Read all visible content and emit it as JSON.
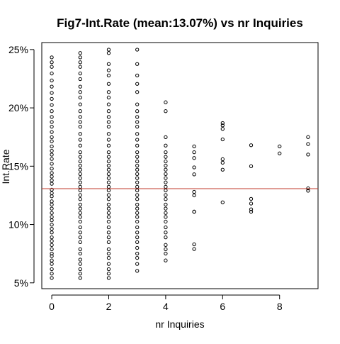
{
  "chart_data": {
    "type": "scatter",
    "title": "Fig7-Int.Rate (mean:13.07%) vs nr Inquiries",
    "xlabel": "nr Inquiries",
    "ylabel": "Int.Rate",
    "xlim": [
      -0.35,
      9.35
    ],
    "ylim": [
      4.5,
      25.6
    ],
    "x_ticks": [
      {
        "value": 0,
        "label": "0"
      },
      {
        "value": 2,
        "label": "2"
      },
      {
        "value": 4,
        "label": "4"
      },
      {
        "value": 6,
        "label": "6"
      },
      {
        "value": 8,
        "label": "8"
      }
    ],
    "y_ticks": [
      {
        "value": 5,
        "label": "5%"
      },
      {
        "value": 10,
        "label": "10%"
      },
      {
        "value": 15,
        "label": "15%"
      },
      {
        "value": 20,
        "label": "20%"
      },
      {
        "value": 25,
        "label": "25%"
      }
    ],
    "mean_line": {
      "value": 13.07,
      "color": "#c0392b"
    },
    "grid": false,
    "point_style": "open-circle",
    "point_color": "#000000",
    "series": [
      {
        "points": [
          {
            "x": 0,
            "y": 5.42
          },
          {
            "x": 0,
            "y": 5.79
          },
          {
            "x": 0,
            "y": 6.17
          },
          {
            "x": 0,
            "y": 6.62
          },
          {
            "x": 0,
            "y": 6.92
          },
          {
            "x": 0,
            "y": 7.29
          },
          {
            "x": 0,
            "y": 7.51
          },
          {
            "x": 0,
            "y": 7.88
          },
          {
            "x": 0,
            "y": 8.25
          },
          {
            "x": 0,
            "y": 8.59
          },
          {
            "x": 0,
            "y": 8.9
          },
          {
            "x": 0,
            "y": 9.32
          },
          {
            "x": 0,
            "y": 9.63
          },
          {
            "x": 0,
            "y": 9.99
          },
          {
            "x": 0,
            "y": 10.36
          },
          {
            "x": 0,
            "y": 10.65
          },
          {
            "x": 0,
            "y": 10.99
          },
          {
            "x": 0,
            "y": 11.36
          },
          {
            "x": 0,
            "y": 11.71
          },
          {
            "x": 0,
            "y": 11.99
          },
          {
            "x": 0,
            "y": 12.42
          },
          {
            "x": 0,
            "y": 12.69
          },
          {
            "x": 0,
            "y": 12.99
          },
          {
            "x": 0,
            "y": 13.49
          },
          {
            "x": 0,
            "y": 13.79
          },
          {
            "x": 0,
            "y": 14.11
          },
          {
            "x": 0,
            "y": 14.42
          },
          {
            "x": 0,
            "y": 14.79
          },
          {
            "x": 0,
            "y": 15.21
          },
          {
            "x": 0,
            "y": 15.62
          },
          {
            "x": 0,
            "y": 15.99
          },
          {
            "x": 0,
            "y": 16.32
          },
          {
            "x": 0,
            "y": 16.69
          },
          {
            "x": 0,
            "y": 17.14
          },
          {
            "x": 0,
            "y": 17.49
          },
          {
            "x": 0,
            "y": 17.93
          },
          {
            "x": 0,
            "y": 18.39
          },
          {
            "x": 0,
            "y": 18.79
          },
          {
            "x": 0,
            "y": 19.22
          },
          {
            "x": 0,
            "y": 19.72
          },
          {
            "x": 0,
            "y": 20.25
          },
          {
            "x": 0,
            "y": 20.77
          },
          {
            "x": 0,
            "y": 21.28
          },
          {
            "x": 0,
            "y": 21.82
          },
          {
            "x": 0,
            "y": 22.35
          },
          {
            "x": 0,
            "y": 22.95
          },
          {
            "x": 0,
            "y": 23.52
          },
          {
            "x": 0,
            "y": 23.91
          },
          {
            "x": 0,
            "y": 24.33
          },
          {
            "x": 1,
            "y": 5.42
          },
          {
            "x": 1,
            "y": 5.79
          },
          {
            "x": 1,
            "y": 6.17
          },
          {
            "x": 1,
            "y": 6.62
          },
          {
            "x": 1,
            "y": 6.99
          },
          {
            "x": 1,
            "y": 7.51
          },
          {
            "x": 1,
            "y": 7.88
          },
          {
            "x": 1,
            "y": 8.49
          },
          {
            "x": 1,
            "y": 8.9
          },
          {
            "x": 1,
            "y": 9.32
          },
          {
            "x": 1,
            "y": 9.76
          },
          {
            "x": 1,
            "y": 10.25
          },
          {
            "x": 1,
            "y": 10.65
          },
          {
            "x": 1,
            "y": 10.99
          },
          {
            "x": 1,
            "y": 11.36
          },
          {
            "x": 1,
            "y": 11.71
          },
          {
            "x": 1,
            "y": 12.18
          },
          {
            "x": 1,
            "y": 12.53
          },
          {
            "x": 1,
            "y": 12.92
          },
          {
            "x": 1,
            "y": 13.23
          },
          {
            "x": 1,
            "y": 13.61
          },
          {
            "x": 1,
            "y": 13.98
          },
          {
            "x": 1,
            "y": 14.33
          },
          {
            "x": 1,
            "y": 14.7
          },
          {
            "x": 1,
            "y": 15.05
          },
          {
            "x": 1,
            "y": 15.41
          },
          {
            "x": 1,
            "y": 15.8
          },
          {
            "x": 1,
            "y": 16.2
          },
          {
            "x": 1,
            "y": 16.77
          },
          {
            "x": 1,
            "y": 17.27
          },
          {
            "x": 1,
            "y": 17.77
          },
          {
            "x": 1,
            "y": 18.39
          },
          {
            "x": 1,
            "y": 18.79
          },
          {
            "x": 1,
            "y": 19.22
          },
          {
            "x": 1,
            "y": 19.72
          },
          {
            "x": 1,
            "y": 20.3
          },
          {
            "x": 1,
            "y": 20.89
          },
          {
            "x": 1,
            "y": 21.36
          },
          {
            "x": 1,
            "y": 21.82
          },
          {
            "x": 1,
            "y": 22.47
          },
          {
            "x": 1,
            "y": 22.95
          },
          {
            "x": 1,
            "y": 23.52
          },
          {
            "x": 1,
            "y": 23.91
          },
          {
            "x": 1,
            "y": 24.33
          },
          {
            "x": 1,
            "y": 24.7
          },
          {
            "x": 2,
            "y": 5.42
          },
          {
            "x": 2,
            "y": 5.79
          },
          {
            "x": 2,
            "y": 6.17
          },
          {
            "x": 2,
            "y": 6.62
          },
          {
            "x": 2,
            "y": 7.14
          },
          {
            "x": 2,
            "y": 7.51
          },
          {
            "x": 2,
            "y": 7.88
          },
          {
            "x": 2,
            "y": 8.49
          },
          {
            "x": 2,
            "y": 8.9
          },
          {
            "x": 2,
            "y": 9.32
          },
          {
            "x": 2,
            "y": 9.76
          },
          {
            "x": 2,
            "y": 10.25
          },
          {
            "x": 2,
            "y": 10.65
          },
          {
            "x": 2,
            "y": 10.99
          },
          {
            "x": 2,
            "y": 11.36
          },
          {
            "x": 2,
            "y": 11.71
          },
          {
            "x": 2,
            "y": 12.18
          },
          {
            "x": 2,
            "y": 12.53
          },
          {
            "x": 2,
            "y": 12.92
          },
          {
            "x": 2,
            "y": 13.23
          },
          {
            "x": 2,
            "y": 13.61
          },
          {
            "x": 2,
            "y": 13.98
          },
          {
            "x": 2,
            "y": 14.33
          },
          {
            "x": 2,
            "y": 14.7
          },
          {
            "x": 2,
            "y": 15.05
          },
          {
            "x": 2,
            "y": 15.41
          },
          {
            "x": 2,
            "y": 15.8
          },
          {
            "x": 2,
            "y": 16.2
          },
          {
            "x": 2,
            "y": 16.77
          },
          {
            "x": 2,
            "y": 17.27
          },
          {
            "x": 2,
            "y": 17.77
          },
          {
            "x": 2,
            "y": 18.39
          },
          {
            "x": 2,
            "y": 18.79
          },
          {
            "x": 2,
            "y": 19.22
          },
          {
            "x": 2,
            "y": 19.72
          },
          {
            "x": 2,
            "y": 20.3
          },
          {
            "x": 2,
            "y": 20.89
          },
          {
            "x": 2,
            "y": 21.36
          },
          {
            "x": 2,
            "y": 22.06
          },
          {
            "x": 2,
            "y": 22.78
          },
          {
            "x": 2,
            "y": 23.22
          },
          {
            "x": 2,
            "y": 23.76
          },
          {
            "x": 2,
            "y": 24.7
          },
          {
            "x": 2,
            "y": 24.99
          },
          {
            "x": 3,
            "y": 6.03
          },
          {
            "x": 3,
            "y": 6.62
          },
          {
            "x": 3,
            "y": 7.14
          },
          {
            "x": 3,
            "y": 7.51
          },
          {
            "x": 3,
            "y": 8.0
          },
          {
            "x": 3,
            "y": 8.49
          },
          {
            "x": 3,
            "y": 8.9
          },
          {
            "x": 3,
            "y": 9.32
          },
          {
            "x": 3,
            "y": 9.76
          },
          {
            "x": 3,
            "y": 10.25
          },
          {
            "x": 3,
            "y": 10.65
          },
          {
            "x": 3,
            "y": 10.99
          },
          {
            "x": 3,
            "y": 11.36
          },
          {
            "x": 3,
            "y": 11.71
          },
          {
            "x": 3,
            "y": 12.18
          },
          {
            "x": 3,
            "y": 12.53
          },
          {
            "x": 3,
            "y": 12.92
          },
          {
            "x": 3,
            "y": 13.23
          },
          {
            "x": 3,
            "y": 13.61
          },
          {
            "x": 3,
            "y": 13.98
          },
          {
            "x": 3,
            "y": 14.33
          },
          {
            "x": 3,
            "y": 14.7
          },
          {
            "x": 3,
            "y": 15.05
          },
          {
            "x": 3,
            "y": 15.41
          },
          {
            "x": 3,
            "y": 15.8
          },
          {
            "x": 3,
            "y": 16.2
          },
          {
            "x": 3,
            "y": 16.77
          },
          {
            "x": 3,
            "y": 17.27
          },
          {
            "x": 3,
            "y": 17.77
          },
          {
            "x": 3,
            "y": 18.39
          },
          {
            "x": 3,
            "y": 18.79
          },
          {
            "x": 3,
            "y": 19.22
          },
          {
            "x": 3,
            "y": 19.72
          },
          {
            "x": 3,
            "y": 20.3
          },
          {
            "x": 3,
            "y": 21.36
          },
          {
            "x": 3,
            "y": 22.06
          },
          {
            "x": 3,
            "y": 22.78
          },
          {
            "x": 3,
            "y": 23.76
          },
          {
            "x": 3,
            "y": 24.99
          },
          {
            "x": 4,
            "y": 6.92
          },
          {
            "x": 4,
            "y": 7.51
          },
          {
            "x": 4,
            "y": 7.88
          },
          {
            "x": 4,
            "y": 8.25
          },
          {
            "x": 4,
            "y": 8.9
          },
          {
            "x": 4,
            "y": 9.32
          },
          {
            "x": 4,
            "y": 9.76
          },
          {
            "x": 4,
            "y": 10.25
          },
          {
            "x": 4,
            "y": 10.65
          },
          {
            "x": 4,
            "y": 10.99
          },
          {
            "x": 4,
            "y": 11.36
          },
          {
            "x": 4,
            "y": 11.71
          },
          {
            "x": 4,
            "y": 12.18
          },
          {
            "x": 4,
            "y": 12.53
          },
          {
            "x": 4,
            "y": 12.92
          },
          {
            "x": 4,
            "y": 13.23
          },
          {
            "x": 4,
            "y": 13.61
          },
          {
            "x": 4,
            "y": 13.98
          },
          {
            "x": 4,
            "y": 14.33
          },
          {
            "x": 4,
            "y": 14.7
          },
          {
            "x": 4,
            "y": 15.05
          },
          {
            "x": 4,
            "y": 15.41
          },
          {
            "x": 4,
            "y": 15.8
          },
          {
            "x": 4,
            "y": 16.2
          },
          {
            "x": 4,
            "y": 16.77
          },
          {
            "x": 4,
            "y": 17.49
          },
          {
            "x": 4,
            "y": 19.72
          },
          {
            "x": 4,
            "y": 20.48
          },
          {
            "x": 5,
            "y": 7.9
          },
          {
            "x": 5,
            "y": 8.3
          },
          {
            "x": 5,
            "y": 11.1
          },
          {
            "x": 5,
            "y": 11.1
          },
          {
            "x": 5,
            "y": 12.5
          },
          {
            "x": 5,
            "y": 12.8
          },
          {
            "x": 5,
            "y": 14.3
          },
          {
            "x": 5,
            "y": 14.9
          },
          {
            "x": 5,
            "y": 15.7
          },
          {
            "x": 5,
            "y": 16.2
          },
          {
            "x": 5,
            "y": 16.7
          },
          {
            "x": 6,
            "y": 11.9
          },
          {
            "x": 6,
            "y": 14.7
          },
          {
            "x": 6,
            "y": 15.3
          },
          {
            "x": 6,
            "y": 15.6
          },
          {
            "x": 6,
            "y": 17.3
          },
          {
            "x": 6,
            "y": 18.2
          },
          {
            "x": 6,
            "y": 18.5
          },
          {
            "x": 6,
            "y": 18.7
          },
          {
            "x": 7,
            "y": 11.1
          },
          {
            "x": 7,
            "y": 11.3
          },
          {
            "x": 7,
            "y": 11.8
          },
          {
            "x": 7,
            "y": 12.2
          },
          {
            "x": 7,
            "y": 15.0
          },
          {
            "x": 7,
            "y": 16.8
          },
          {
            "x": 8,
            "y": 16.1
          },
          {
            "x": 8,
            "y": 16.7
          },
          {
            "x": 9,
            "y": 12.9
          },
          {
            "x": 9,
            "y": 13.1
          },
          {
            "x": 9,
            "y": 16.0
          },
          {
            "x": 9,
            "y": 16.9
          },
          {
            "x": 9,
            "y": 17.5
          }
        ]
      }
    ]
  }
}
